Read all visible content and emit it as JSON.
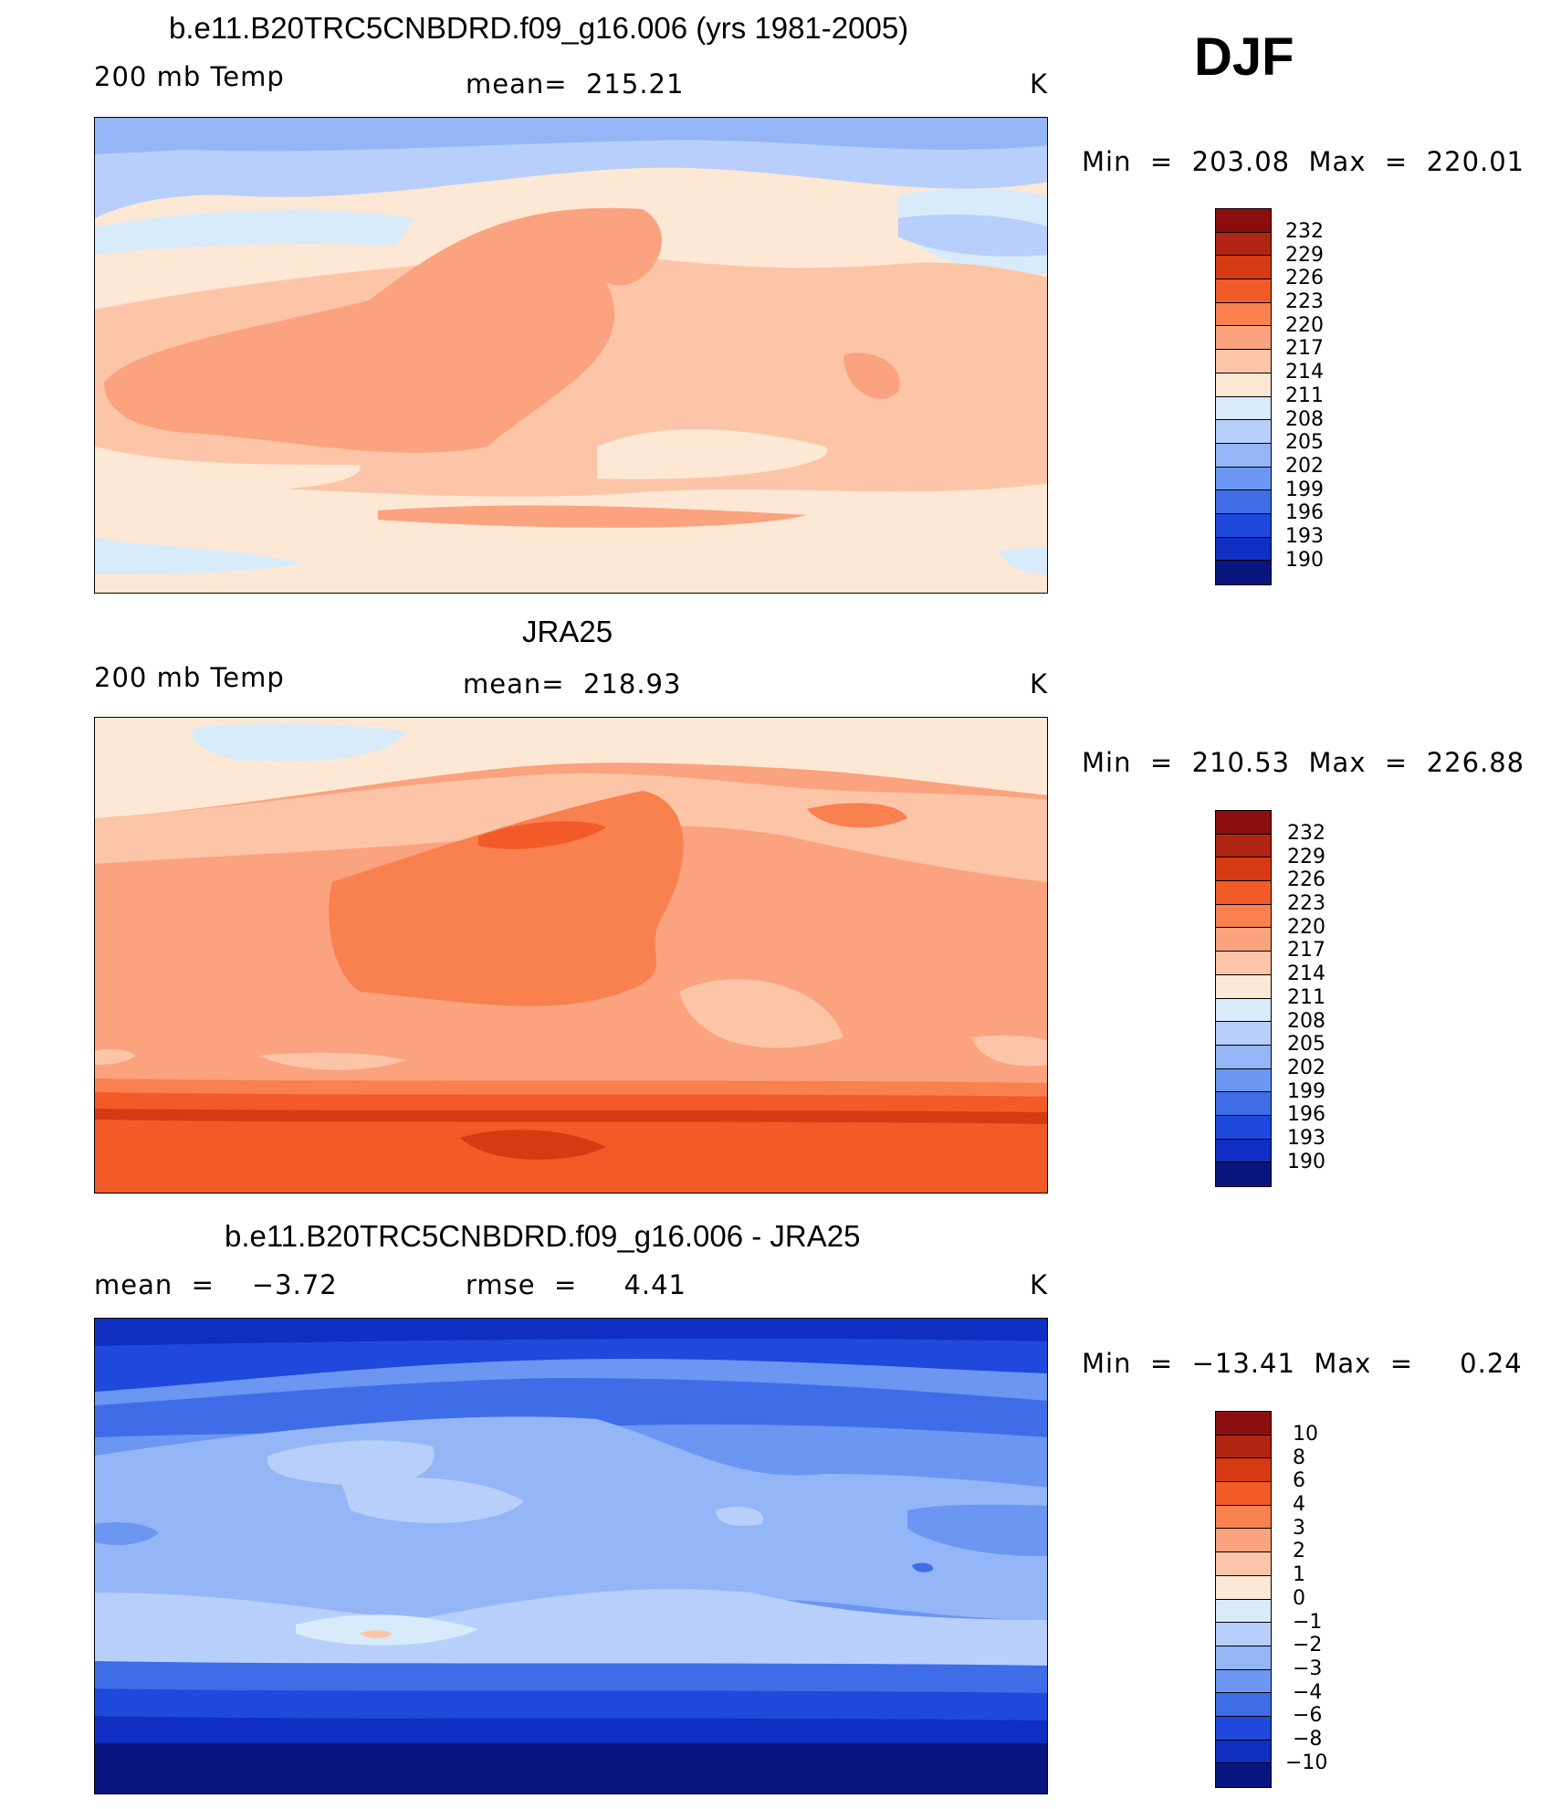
{
  "season": "DJF",
  "panels": [
    {
      "title": "b.e11.B20TRC5CNBDRD.f09_g16.006 (yrs 1981-2005)",
      "left": "200 mb Temp",
      "center": "mean=  215.21",
      "unit": "K",
      "minmax": "Min  =  203.08  Max  =  220.01",
      "levels": [
        "232",
        "229",
        "226",
        "223",
        "220",
        "217",
        "214",
        "211",
        "208",
        "205",
        "202",
        "199",
        "196",
        "193",
        "190"
      ]
    },
    {
      "title": "JRA25",
      "left": "200 mb Temp",
      "center": "mean=  218.93",
      "unit": "K",
      "minmax": "Min  =  210.53  Max  =  226.88",
      "levels": [
        "232",
        "229",
        "226",
        "223",
        "220",
        "217",
        "214",
        "211",
        "208",
        "205",
        "202",
        "199",
        "196",
        "193",
        "190"
      ]
    },
    {
      "title": "b.e11.B20TRC5CNBDRD.f09_g16.006 - JRA25",
      "left": "mean  =    −3.72",
      "center": "rmse  =     4.41",
      "unit": "K",
      "minmax": "Min  =  −13.41  Max  =     0.24",
      "levels": [
        "10",
        "8",
        "6",
        "4",
        "3",
        "2",
        "1",
        "0",
        "−1",
        "−2",
        "−3",
        "−4",
        "−6",
        "−8",
        "−10"
      ]
    }
  ],
  "colorbar_colors": [
    "#8c0d0d",
    "#b22512",
    "#d63a12",
    "#f25b27",
    "#f9804f",
    "#fba27e",
    "#fdc5a8",
    "#fde8d6",
    "#d8ebfa",
    "#b7cffa",
    "#94b6f7",
    "#6b96f1",
    "#3f6de8",
    "#1f48dc",
    "#0f2ec2",
    "#08157e"
  ]
}
